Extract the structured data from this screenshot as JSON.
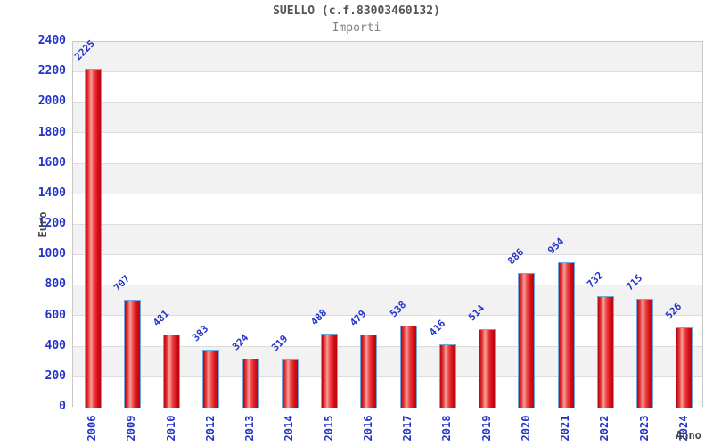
{
  "header": {
    "title": "SUELLO (c.f.83003460132)",
    "subtitle": "Importi"
  },
  "chart_data": {
    "type": "bar",
    "title": "SUELLO (c.f.83003460132)",
    "subtitle": "Importi",
    "xlabel": "Anno",
    "ylabel": "Euro",
    "categories": [
      "2006",
      "2009",
      "2010",
      "2012",
      "2013",
      "2014",
      "2015",
      "2016",
      "2017",
      "2018",
      "2019",
      "2020",
      "2021",
      "2022",
      "2023",
      "2024"
    ],
    "values": [
      2225,
      707,
      481,
      383,
      324,
      319,
      488,
      479,
      538,
      416,
      514,
      886,
      954,
      732,
      715,
      526
    ],
    "ylim": [
      0,
      2400
    ],
    "ytick_step": 200,
    "yticks": [
      0,
      200,
      400,
      600,
      800,
      1000,
      1200,
      1400,
      1600,
      1800,
      2000,
      2200,
      2400
    ],
    "grid": "horizontal",
    "legend": "none",
    "colors": {
      "label_blue": "#2233cc",
      "title_gray": "#555555",
      "subtitle_gray": "#808080",
      "axis_label_gray": "#444444",
      "band_gray": "#f2f2f2",
      "band_white": "#ffffff",
      "gridline": "#dcdcdc",
      "plot_border": "#c9c9c9",
      "bar_border": "#6fa8dc",
      "bar_dark_red": "#b8050f",
      "bar_mid_red": "#e03535",
      "bar_highlight": "#f7a09b"
    }
  }
}
